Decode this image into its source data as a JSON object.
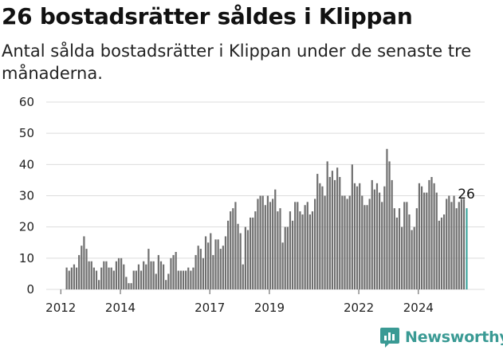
{
  "header": {
    "title": "26 bostadsrätter såldes i Klippan",
    "subtitle": "Antal sålda bostadsrätter i Klippan under de senaste tre månaderna."
  },
  "brand": {
    "name": "Newsworthy",
    "icon": "newsworthy-chart-icon",
    "color": "#3a9a94"
  },
  "chart_data": {
    "type": "bar",
    "title": "26 bostadsrätter såldes i Klippan",
    "subtitle": "Antal sålda bostadsrätter i Klippan under de senaste tre månaderna.",
    "xlabel": "",
    "ylabel": "",
    "ylim": [
      0,
      60
    ],
    "yticks": [
      0,
      10,
      20,
      30,
      40,
      50,
      60
    ],
    "grid": true,
    "legend": "none",
    "bar_color": "#707070",
    "highlight_color": "#2f9e96",
    "x_start": "2012-03",
    "x_end": "2024-09",
    "xticks": [
      {
        "label": "2012",
        "date": "2012-01"
      },
      {
        "label": "2014",
        "date": "2014-01"
      },
      {
        "label": "2017",
        "date": "2017-01"
      },
      {
        "label": "2019",
        "date": "2019-01"
      },
      {
        "label": "2022",
        "date": "2022-01"
      },
      {
        "label": "2024",
        "date": "2024-01"
      }
    ],
    "values": [
      7,
      6,
      7,
      8,
      7,
      11,
      14,
      17,
      13,
      9,
      9,
      7,
      6,
      3,
      7,
      9,
      9,
      7,
      7,
      6,
      9,
      10,
      10,
      8,
      4,
      2,
      2,
      6,
      6,
      8,
      6,
      9,
      8,
      13,
      9,
      9,
      5,
      11,
      9,
      8,
      3,
      5,
      10,
      11,
      12,
      6,
      6,
      6,
      6,
      7,
      6,
      7,
      11,
      14,
      13,
      10,
      17,
      15,
      18,
      11,
      16,
      16,
      13,
      14,
      17,
      22,
      25,
      26,
      28,
      21,
      18,
      8,
      20,
      19,
      23,
      23,
      25,
      29,
      30,
      30,
      27,
      30,
      28,
      29,
      32,
      25,
      26,
      15,
      20,
      20,
      25,
      22,
      28,
      28,
      25,
      24,
      27,
      28,
      24,
      25,
      29,
      37,
      34,
      33,
      30,
      41,
      36,
      38,
      35,
      39,
      36,
      30,
      30,
      29,
      30,
      40,
      34,
      33,
      34,
      30,
      27,
      27,
      29,
      35,
      32,
      34,
      31,
      28,
      33,
      45,
      41,
      35,
      26,
      23,
      26,
      20,
      28,
      28,
      24,
      19,
      20,
      26,
      34,
      33,
      31,
      31,
      35,
      36,
      34,
      31,
      22,
      23,
      24,
      29,
      30,
      28,
      30,
      26,
      28,
      29,
      29,
      26
    ],
    "last_value_label": "26"
  }
}
